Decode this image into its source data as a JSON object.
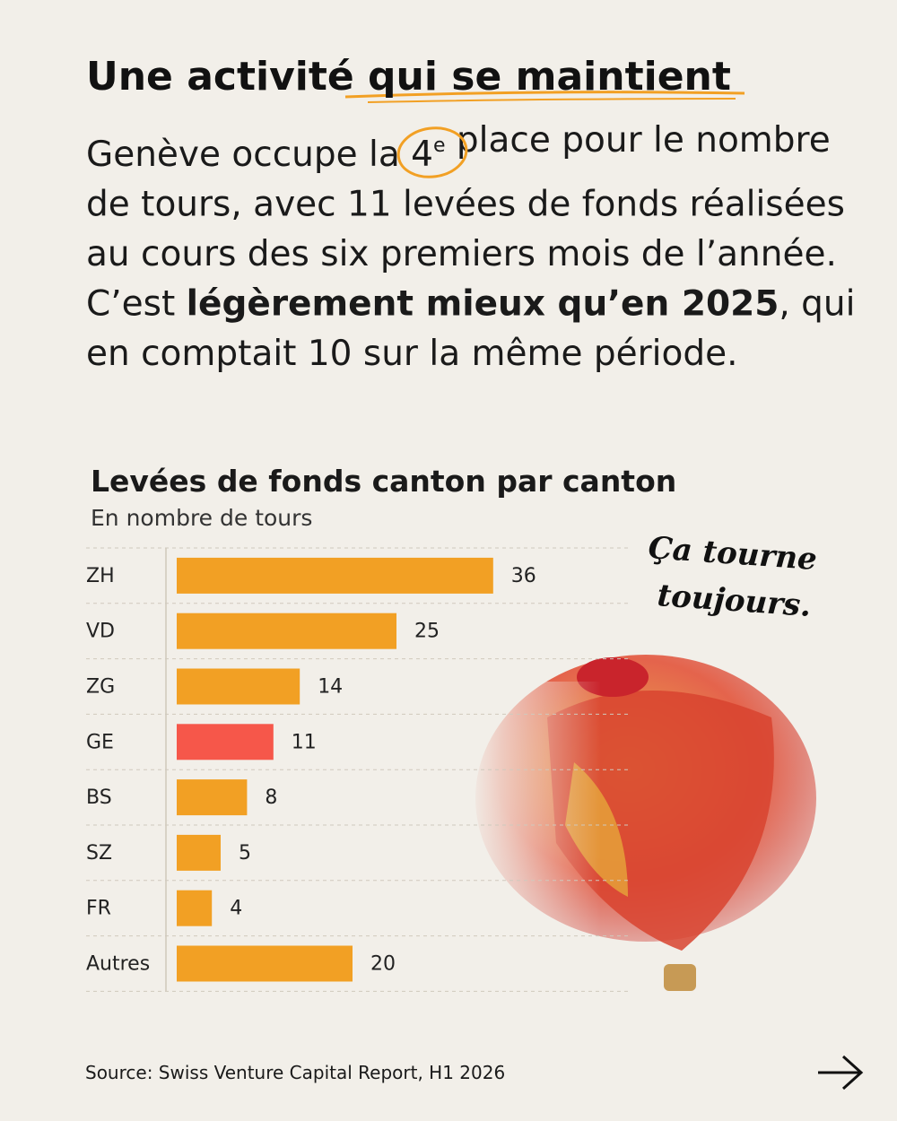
{
  "header": {
    "title": "Une activité qui se maintient"
  },
  "paragraph": {
    "lines": [
      [
        {
          "text": "Genève occupe la "
        },
        {
          "text": "4"
        },
        {
          "text": "e",
          "sup": true
        },
        {
          "text": " place pour le nombre"
        }
      ],
      [
        {
          "text": "de tours, avec 11 levées de fonds réalisées"
        }
      ],
      [
        {
          "text": "au cours des six premiers mois de l’année."
        }
      ],
      [
        {
          "text": "C’est "
        },
        {
          "text": "légèrement mieux qu’en 2025",
          "bold": true
        },
        {
          "text": ", qui"
        }
      ],
      [
        {
          "text": "en comptait 10 sur la même période."
        }
      ]
    ]
  },
  "chart_data": {
    "type": "bar",
    "orientation": "horizontal",
    "title": "Levées de fonds canton par canton",
    "subtitle": "En nombre de tours",
    "categories": [
      "ZH",
      "VD",
      "ZG",
      "GE",
      "BS",
      "SZ",
      "FR",
      "Autres"
    ],
    "values": [
      36,
      25,
      14,
      11,
      8,
      5,
      4,
      20
    ],
    "colors": [
      "#f2a024",
      "#f2a024",
      "#f2a024",
      "#f6574a",
      "#f2a024",
      "#f2a024",
      "#f2a024",
      "#f2a024"
    ],
    "xlim": [
      0,
      40
    ],
    "annotation": [
      "Ça tourne",
      "toujours."
    ]
  },
  "footer": {
    "source": "Source: Swiss Venture Capital Report, H1 2026"
  }
}
